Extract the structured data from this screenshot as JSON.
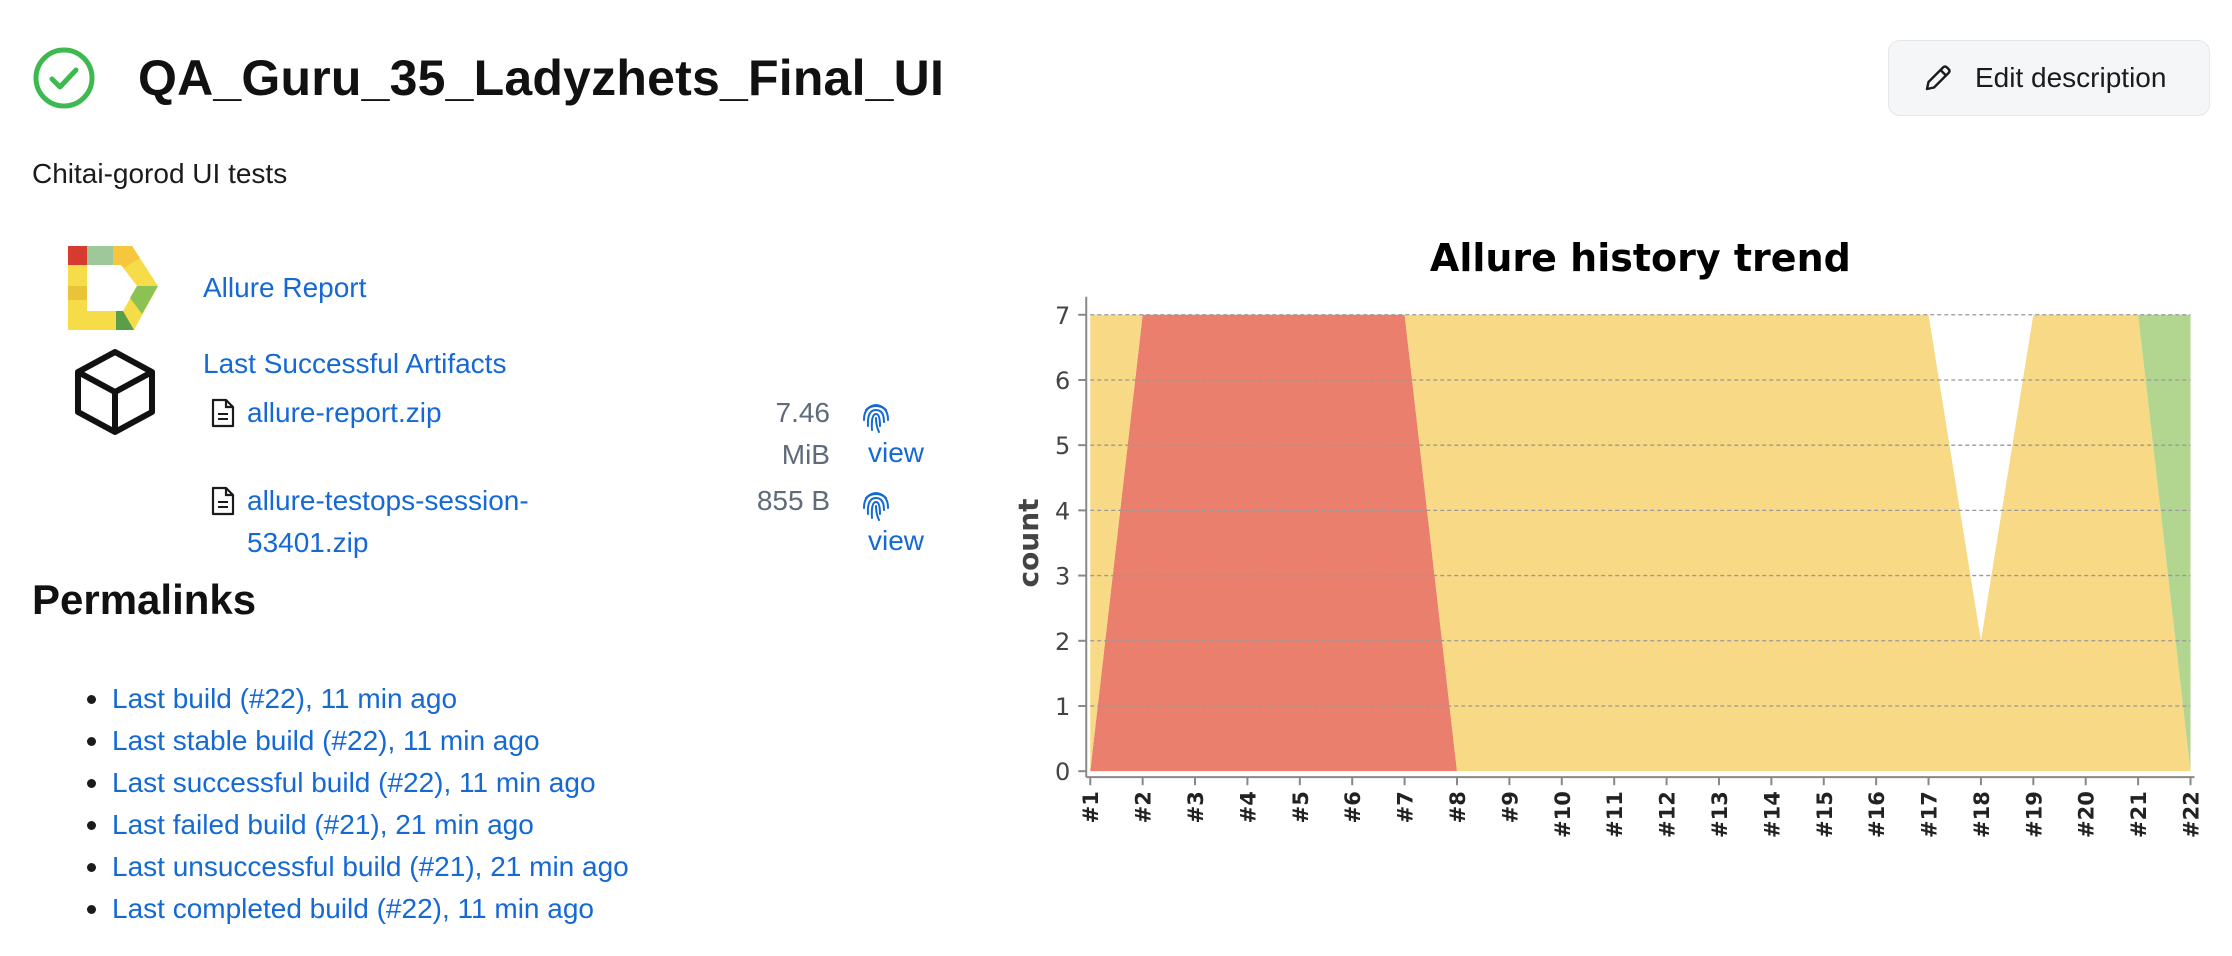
{
  "header": {
    "title": "QA_Guru_35_Ladyzhets_Final_UI",
    "status_icon": "check-circle-icon",
    "status_color": "#3db950",
    "edit_button_label": "Edit description"
  },
  "description": "Chitai-gorod UI tests",
  "links": {
    "allure_report": "Allure Report",
    "last_successful_artifacts": "Last Successful Artifacts"
  },
  "artifacts": [
    {
      "name_line1": "allure-report.zip",
      "name_line2": "",
      "size_line1": "7.46",
      "size_line2": "MiB",
      "view_label": "view"
    },
    {
      "name_line1": "allure-testops-session-",
      "name_line2": "53401.zip",
      "size_line1": "855 B",
      "size_line2": "",
      "view_label": "view"
    }
  ],
  "permalinks": {
    "title": "Permalinks",
    "items": [
      "Last build (#22), 11 min ago",
      "Last stable build (#22), 11 min ago",
      "Last successful build (#22), 11 min ago",
      "Last failed build (#21), 21 min ago",
      "Last unsuccessful build (#21), 21 min ago",
      "Last completed build (#22), 11 min ago"
    ]
  },
  "chart_data": {
    "type": "area",
    "title": "Allure history trend",
    "ylabel": "count",
    "xlabel": "",
    "ylim": [
      0,
      7
    ],
    "yticks": [
      0,
      1,
      2,
      3,
      4,
      5,
      6,
      7
    ],
    "grid": true,
    "categories": [
      "#1",
      "#2",
      "#3",
      "#4",
      "#5",
      "#6",
      "#7",
      "#8",
      "#9",
      "#10",
      "#11",
      "#12",
      "#13",
      "#14",
      "#15",
      "#16",
      "#17",
      "#18",
      "#19",
      "#20",
      "#21",
      "#22"
    ],
    "series": [
      {
        "color": "#e97f6c",
        "values": [
          0,
          7,
          7,
          7,
          7,
          7,
          7,
          0,
          0,
          0,
          0,
          0,
          0,
          0,
          0,
          0,
          0,
          0,
          0,
          0,
          0,
          0
        ]
      },
      {
        "color": "#f8d985",
        "values": [
          7,
          0,
          0,
          0,
          0,
          0,
          0,
          7,
          7,
          7,
          7,
          7,
          7,
          7,
          7,
          7,
          7,
          2,
          7,
          7,
          7,
          0
        ]
      },
      {
        "color": "#b2d68f",
        "values": [
          0,
          0,
          0,
          0,
          0,
          0,
          0,
          0,
          0,
          0,
          0,
          0,
          0,
          0,
          0,
          0,
          0,
          0,
          0,
          0,
          0,
          7
        ]
      }
    ]
  }
}
